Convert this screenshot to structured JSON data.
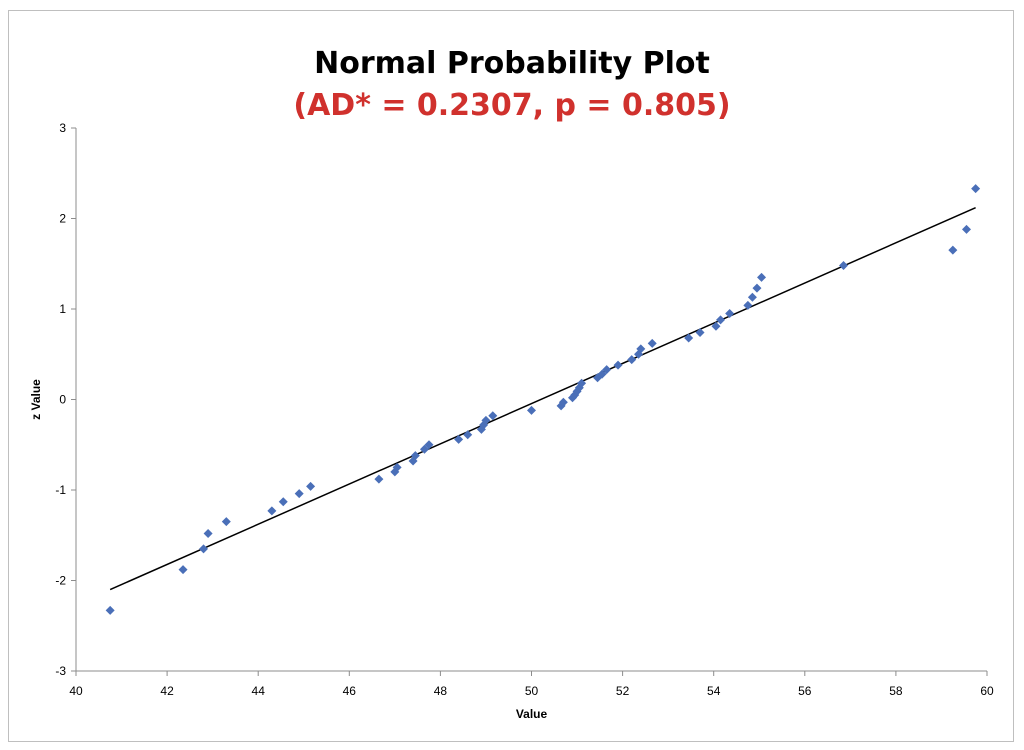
{
  "chart_data": {
    "type": "scatter",
    "title": "Normal Probability Plot",
    "subtitle": "(AD* = 0.2307, p = 0.805)",
    "xlabel": "Value",
    "ylabel": "z Value",
    "xlim": [
      40,
      60
    ],
    "ylim": [
      -3,
      3
    ],
    "xticks": [
      40,
      42,
      44,
      46,
      48,
      50,
      52,
      54,
      56,
      58,
      60
    ],
    "yticks": [
      -3,
      -2,
      -1,
      0,
      1,
      2,
      3
    ],
    "grid": false,
    "legend": "none",
    "colors": {
      "points": "#4a6fb8",
      "line": "#000000",
      "subtitle": "#d0312d"
    },
    "fit_line": {
      "x": [
        40.75,
        59.75
      ],
      "y": [
        -2.1,
        2.12
      ]
    },
    "series": [
      {
        "points": [
          [
            40.75,
            -2.33
          ],
          [
            42.35,
            -1.88
          ],
          [
            42.8,
            -1.65
          ],
          [
            42.9,
            -1.48
          ],
          [
            43.3,
            -1.35
          ],
          [
            44.3,
            -1.23
          ],
          [
            44.55,
            -1.13
          ],
          [
            44.9,
            -1.04
          ],
          [
            45.15,
            -0.96
          ],
          [
            46.65,
            -0.88
          ],
          [
            47.0,
            -0.8
          ],
          [
            47.05,
            -0.75
          ],
          [
            47.4,
            -0.68
          ],
          [
            47.45,
            -0.62
          ],
          [
            47.65,
            -0.55
          ],
          [
            47.75,
            -0.5
          ],
          [
            48.4,
            -0.44
          ],
          [
            48.6,
            -0.39
          ],
          [
            48.9,
            -0.33
          ],
          [
            48.95,
            -0.28
          ],
          [
            49.0,
            -0.23
          ],
          [
            49.15,
            -0.18
          ],
          [
            50.0,
            -0.12
          ],
          [
            50.65,
            -0.07
          ],
          [
            50.7,
            -0.03
          ],
          [
            50.9,
            0.02
          ],
          [
            50.95,
            0.05
          ],
          [
            51.0,
            0.09
          ],
          [
            51.05,
            0.13
          ],
          [
            51.1,
            0.18
          ],
          [
            51.45,
            0.24
          ],
          [
            51.55,
            0.28
          ],
          [
            51.65,
            0.33
          ],
          [
            51.9,
            0.38
          ],
          [
            52.2,
            0.44
          ],
          [
            52.35,
            0.5
          ],
          [
            52.4,
            0.56
          ],
          [
            52.65,
            0.62
          ],
          [
            53.45,
            0.68
          ],
          [
            53.7,
            0.74
          ],
          [
            54.05,
            0.81
          ],
          [
            54.15,
            0.88
          ],
          [
            54.35,
            0.95
          ],
          [
            54.75,
            1.04
          ],
          [
            54.85,
            1.13
          ],
          [
            54.95,
            1.23
          ],
          [
            55.05,
            1.35
          ],
          [
            56.85,
            1.48
          ],
          [
            59.25,
            1.65
          ],
          [
            59.55,
            1.88
          ],
          [
            59.75,
            2.33
          ]
        ]
      }
    ]
  }
}
